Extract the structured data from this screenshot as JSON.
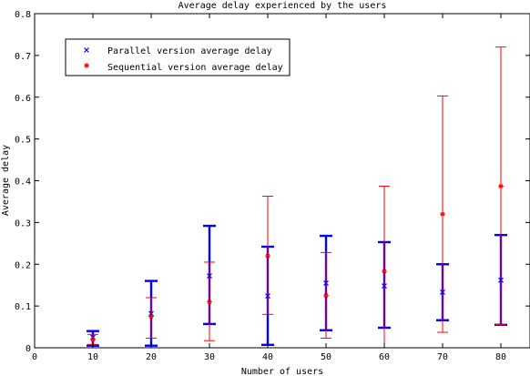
{
  "chart_data": {
    "type": "scatter",
    "title": "Average delay experienced by the users",
    "xlabel": "Number of users",
    "ylabel": "Average delay",
    "xlim": [
      0,
      85
    ],
    "ylim": [
      0,
      0.8
    ],
    "xticks": [
      0,
      10,
      20,
      30,
      40,
      50,
      60,
      70,
      80
    ],
    "yticks": [
      0,
      0.1,
      0.2,
      0.3,
      0.4,
      0.5,
      0.6,
      0.7,
      0.8
    ],
    "xtick_labels": [
      "0",
      "10",
      "20",
      "30",
      "40",
      "50",
      "60",
      "70",
      "80"
    ],
    "ytick_labels": [
      "0",
      "0.1",
      "0.2",
      "0.3",
      "0.4",
      "0.5",
      "0.6",
      "0.7",
      "0.8"
    ],
    "grid": false,
    "legend_position": "top-left",
    "series": [
      {
        "name": "Parallel version average delay",
        "marker": "x",
        "color": "#0000ff",
        "points": [
          {
            "x": 10,
            "y": 0.025,
            "low": 0.005,
            "high": 0.04
          },
          {
            "x": 20,
            "y": 0.082,
            "low": 0.005,
            "high": 0.16
          },
          {
            "x": 30,
            "y": 0.172,
            "low": 0.057,
            "high": 0.292
          },
          {
            "x": 40,
            "y": 0.124,
            "low": 0.007,
            "high": 0.242
          },
          {
            "x": 50,
            "y": 0.155,
            "low": 0.042,
            "high": 0.268
          },
          {
            "x": 60,
            "y": 0.148,
            "low": 0.048,
            "high": 0.253
          },
          {
            "x": 70,
            "y": 0.133,
            "low": 0.066,
            "high": 0.2
          },
          {
            "x": 80,
            "y": 0.162,
            "low": 0.055,
            "high": 0.27
          }
        ]
      },
      {
        "name": "Sequential version average delay",
        "marker": "*",
        "color": "#ff0000",
        "points": [
          {
            "x": 10,
            "y": 0.02,
            "low": 0.008,
            "high": 0.032
          },
          {
            "x": 20,
            "y": 0.075,
            "low": 0.023,
            "high": 0.12
          },
          {
            "x": 30,
            "y": 0.11,
            "low": 0.017,
            "high": 0.205
          },
          {
            "x": 40,
            "y": 0.22,
            "low": 0.08,
            "high": 0.363
          },
          {
            "x": 50,
            "y": 0.125,
            "low": 0.023,
            "high": 0.228
          },
          {
            "x": 60,
            "y": 0.183,
            "low": 0.0,
            "high": 0.387
          },
          {
            "x": 70,
            "y": 0.32,
            "low": 0.037,
            "high": 0.603
          },
          {
            "x": 80,
            "y": 0.387,
            "low": 0.055,
            "high": 0.72
          }
        ]
      }
    ]
  }
}
